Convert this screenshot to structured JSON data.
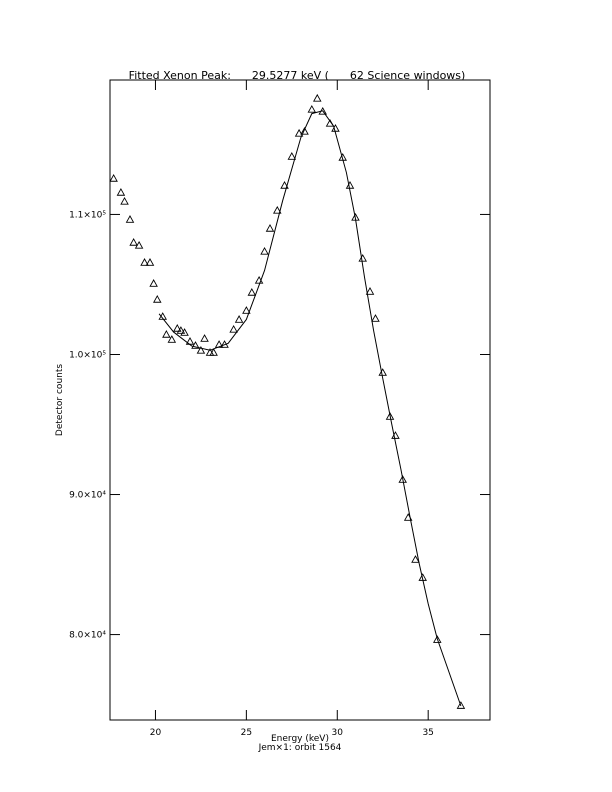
{
  "chart_data": {
    "type": "scatter",
    "title": "Fitted Xenon Peak:      29.5277 keV (      62 Science windows)",
    "x_label": "Energy (keV)",
    "subtitle": "Jem×1: orbit 1564",
    "y_label": "Detector counts",
    "xlim": [
      17.5,
      38.4
    ],
    "ylim": [
      73900,
      119600
    ],
    "xticks": [
      20,
      25,
      30,
      35
    ],
    "yticks": [
      {
        "value": 80000,
        "label": "8.0×10⁴"
      },
      {
        "value": 90000,
        "label": "9.0×10⁴"
      },
      {
        "value": 100000,
        "label": "1.0×10⁵"
      },
      {
        "value": 110000,
        "label": "1.1×10⁵"
      }
    ],
    "series": [
      {
        "mode": "markers",
        "marker": "triangle",
        "color": "#000000",
        "x": [
          17.7,
          18.1,
          18.3,
          18.6,
          18.8,
          19.1,
          19.4,
          19.7,
          19.9,
          20.1,
          20.4,
          20.6,
          20.9,
          21.2,
          21.4,
          21.6,
          21.9,
          22.2,
          22.5,
          22.7,
          23.0,
          23.2,
          23.5,
          23.8,
          24.3,
          24.6,
          25.0,
          25.3,
          25.7,
          26.0,
          26.3,
          26.7,
          27.1,
          27.5,
          27.9,
          28.2,
          28.6,
          28.9,
          29.2,
          29.6,
          29.9,
          30.3,
          30.7,
          31.0,
          31.4,
          31.8,
          32.1,
          32.5,
          32.9,
          33.2,
          33.6,
          33.9,
          34.3,
          34.7,
          35.5,
          36.8
        ],
        "values": [
          112570,
          111570,
          110930,
          109640,
          108000,
          107790,
          106570,
          106570,
          105070,
          103930,
          102710,
          101430,
          101070,
          101860,
          101710,
          101570,
          100930,
          100640,
          100290,
          101140,
          100140,
          100140,
          100710,
          100710,
          101790,
          102500,
          103140,
          104430,
          105290,
          107360,
          109000,
          110290,
          112070,
          114140,
          115790,
          115930,
          117500,
          118290,
          117360,
          116500,
          116140,
          114070,
          112070,
          109790,
          106860,
          104500,
          102570,
          98710,
          95570,
          94210,
          91070,
          88360,
          85360,
          84070,
          79640,
          74930
        ]
      },
      {
        "mode": "line",
        "color": "#000000",
        "x": [
          20.2,
          21,
          22,
          23,
          24,
          25,
          26,
          27,
          28,
          28.6,
          29.2,
          29.8,
          30.5,
          31,
          31.5,
          32,
          32.5,
          33,
          33.5,
          34,
          34.5,
          35,
          35.5,
          36.8
        ],
        "values": [
          102900,
          101600,
          100600,
          100300,
          100800,
          102500,
          106000,
          111000,
          115500,
          117200,
          117400,
          116300,
          113000,
          109700,
          105500,
          101700,
          98300,
          95000,
          91800,
          88400,
          85100,
          82200,
          79700,
          74900
        ]
      }
    ]
  }
}
